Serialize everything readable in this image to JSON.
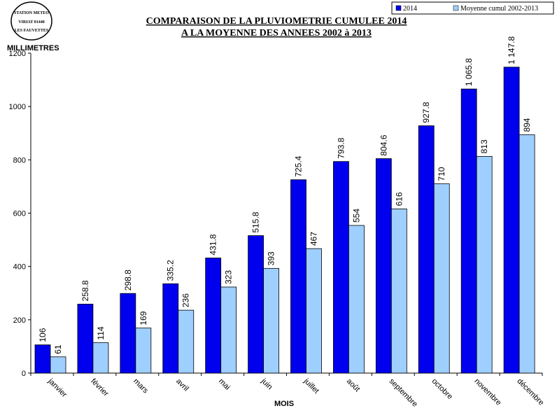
{
  "stamp": {
    "line1": "STATION METEO",
    "line2": "VIRIAT 01440",
    "line3": "LES FAUVETTES"
  },
  "chart_data": {
    "type": "bar",
    "title": "COMPARAISON DE LA PLUVIOMETRIE CUMULEE 2014",
    "subtitle": "A LA MOYENNE DES ANNEES 2002 à 2013",
    "xlabel": "MOIS",
    "ylabel": "MILLIMETRES",
    "ylim": [
      0,
      1200
    ],
    "yticks": [
      0,
      200,
      400,
      600,
      800,
      1000,
      1200
    ],
    "grid": false,
    "legend_position": "top-right",
    "categories": [
      "janvier",
      "février",
      "mars",
      "avril",
      "mai",
      "juin",
      "juillet",
      "août",
      "septembre",
      "octobre",
      "novembre",
      "décembre"
    ],
    "series": [
      {
        "name": "2014",
        "color": "#0000ee",
        "values": [
          106,
          258.8,
          298.8,
          335.2,
          431.8,
          515.8,
          725.4,
          793.8,
          804.6,
          927.8,
          1065.8,
          1147.8
        ],
        "labels": [
          "106",
          "258.8",
          "298.8",
          "335.2",
          "431.8",
          "515.8",
          "725.4",
          "793.8",
          "804.6",
          "927.8",
          "1 065.8",
          "1 147.8"
        ]
      },
      {
        "name": "Moyenne cumul 2002-2013",
        "color": "#9fcfff",
        "values": [
          61,
          114,
          169,
          236,
          323,
          393,
          467,
          554,
          616,
          710,
          813,
          894
        ],
        "labels": [
          "61",
          "114",
          "169",
          "236",
          "323",
          "393",
          "467",
          "554",
          "616",
          "710",
          "813",
          "894"
        ]
      }
    ]
  }
}
